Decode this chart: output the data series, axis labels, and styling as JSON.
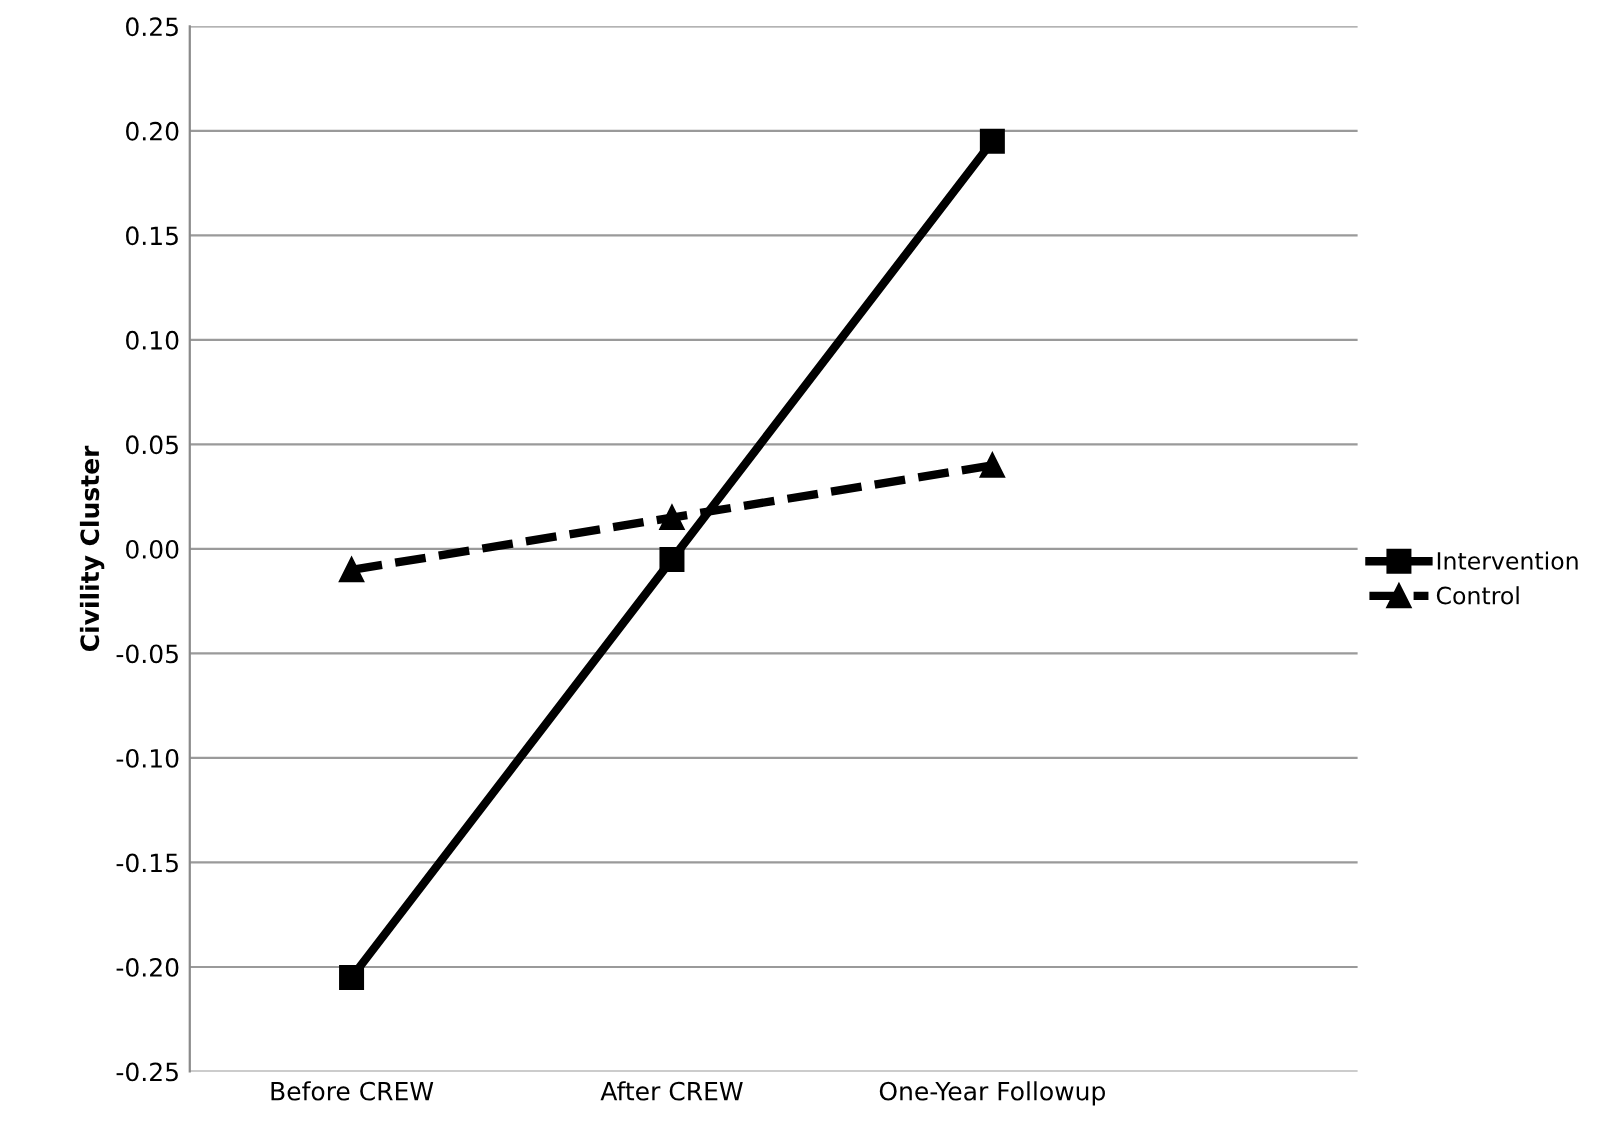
{
  "chart_data": {
    "type": "line",
    "ylabel": "Civility Cluster",
    "categories": [
      "Before CREW",
      "After CREW",
      "One-Year Followup"
    ],
    "series": [
      {
        "name": "Intervention",
        "color": "#000000",
        "values": [
          -0.205,
          -0.005,
          0.195
        ],
        "marker": "square",
        "line_style": "solid"
      },
      {
        "name": "Control",
        "color": "#000000",
        "values": [
          -0.01,
          0.015,
          0.04
        ],
        "marker": "triangle",
        "line_style": "dashed"
      }
    ],
    "ylim": [
      -0.25,
      0.25
    ],
    "yticks": [
      {
        "value": -0.25,
        "label": "-0.25"
      },
      {
        "value": -0.2,
        "label": "-0.20"
      },
      {
        "value": -0.15,
        "label": "-0.15"
      },
      {
        "value": -0.1,
        "label": "-0.10"
      },
      {
        "value": -0.05,
        "label": "-0.05"
      },
      {
        "value": 0,
        "label": "0.00"
      },
      {
        "value": 0.05,
        "label": "0.05"
      },
      {
        "value": 0.1,
        "label": "0.10"
      },
      {
        "value": 0.15,
        "label": "0.15"
      },
      {
        "value": 0.2,
        "label": "0.20"
      },
      {
        "value": 0.25,
        "label": "0.25"
      }
    ],
    "grid": "y",
    "legend": "right"
  }
}
